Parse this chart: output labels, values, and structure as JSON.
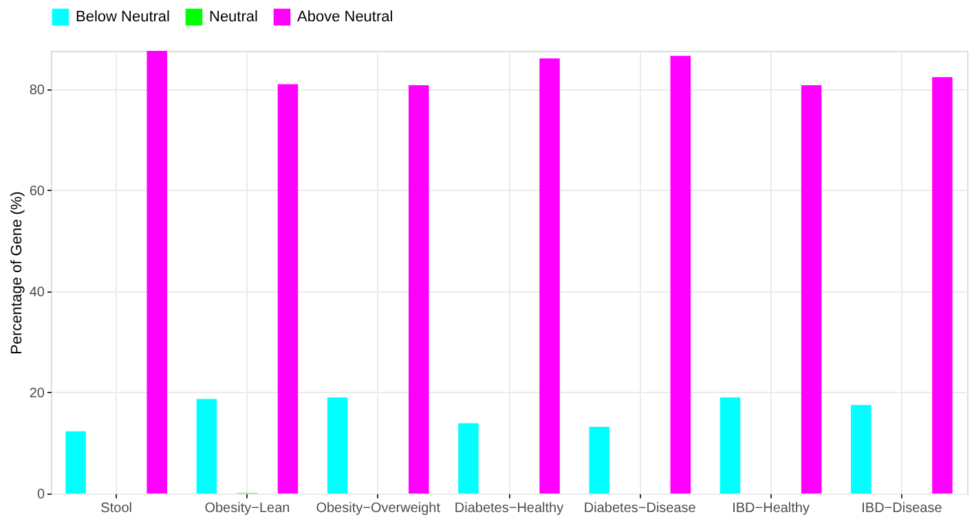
{
  "chart_data": {
    "type": "bar",
    "ylabel": "Percentage of Gene (%)",
    "categories": [
      "Stool",
      "Obesity−Lean",
      "Obesity−Overweight",
      "Diabetes−Healthy",
      "Diabetes−Disease",
      "IBD−Healthy",
      "IBD−Disease"
    ],
    "series": [
      {
        "name": "Below Neutral",
        "color": "#00ffff",
        "values": [
          12.3,
          18.7,
          19.0,
          13.9,
          13.2,
          19.0,
          17.5
        ]
      },
      {
        "name": "Neutral",
        "color": "#00ff00",
        "values": [
          0,
          0.1,
          0,
          0,
          0,
          0,
          0
        ]
      },
      {
        "name": "Above Neutral",
        "color": "#ff00ff",
        "values": [
          87.6,
          81.0,
          80.8,
          86.1,
          86.6,
          80.8,
          82.4
        ]
      }
    ],
    "ylim": [
      0,
      87.6
    ],
    "yticks": [
      0,
      20,
      40,
      60,
      80
    ],
    "grid": true,
    "legend": "top"
  }
}
